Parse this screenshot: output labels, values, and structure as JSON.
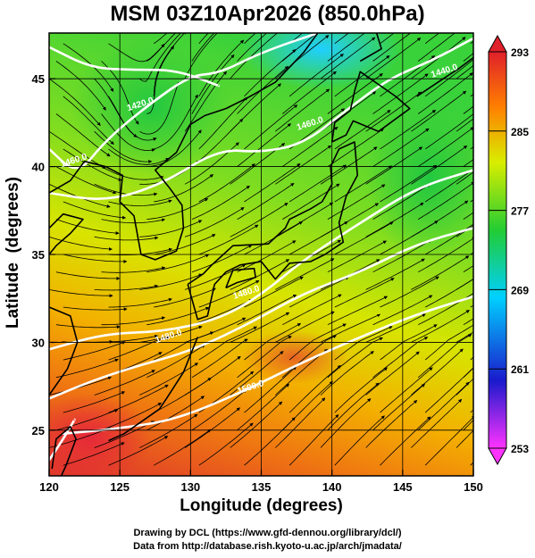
{
  "title": "MSM 03Z10Apr2026 (850.0hPa)",
  "xlabel": "Longitude (degrees)",
  "ylabel": "Latitude  (degrees)",
  "credits": {
    "line1": "Drawing by DCL (https://www.gfd-dennou.org/library/dcl/)",
    "line2": "Data from http://database.rish.kyoto-u.ac.jp/arch/jmadata/"
  },
  "chart_data": {
    "type": "heatmap",
    "description_note": "",
    "x_ticks": [
      120,
      125,
      130,
      135,
      140,
      145,
      150
    ],
    "y_ticks": [
      25,
      30,
      35,
      40,
      45
    ],
    "xlim": [
      120,
      150
    ],
    "ylim": [
      22.4,
      47.6
    ],
    "colorbar": {
      "ticks": [
        253,
        261,
        269,
        277,
        285,
        293
      ],
      "range": [
        253,
        293
      ],
      "colors": [
        "#ff33ff",
        "#1a1acc",
        "#00d0ff",
        "#22cc33",
        "#d8ee00",
        "#ff8000",
        "#e0202a"
      ]
    },
    "contour_labels": [
      {
        "text": "1480.0",
        "lon": 128.5,
        "lat": 30.2
      },
      {
        "text": "1480.0",
        "lon": 134.0,
        "lat": 32.7
      },
      {
        "text": "1460.0",
        "lon": 138.5,
        "lat": 42.3
      },
      {
        "text": "1440.0",
        "lon": 148.0,
        "lat": 45.3
      },
      {
        "text": "1500.0",
        "lon": 134.3,
        "lat": 27.3
      },
      {
        "text": "1420.0",
        "lon": 126.5,
        "lat": 43.4
      },
      {
        "text": "1460.0",
        "lon": 121.8,
        "lat": 40.2
      }
    ]
  }
}
